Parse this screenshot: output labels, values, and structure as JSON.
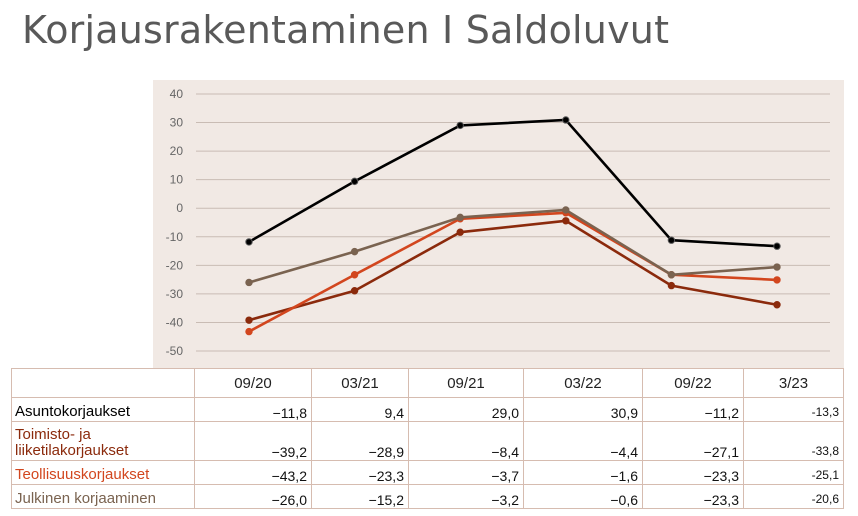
{
  "title": "Korjausrakentaminen I Saldoluvut",
  "chart_data": {
    "type": "line",
    "categories": [
      "09/20",
      "03/21",
      "09/21",
      "03/22",
      "09/22",
      "3/23"
    ],
    "ylim": [
      -50,
      40
    ],
    "yticks": [
      40,
      30,
      20,
      10,
      0,
      -10,
      -20,
      -30,
      -40,
      -50
    ],
    "ytick_labels": [
      "40",
      "30",
      "20",
      "10",
      "0",
      "-10",
      "-20",
      "-30",
      "-40",
      "-50"
    ],
    "grid": true,
    "legend": "data table below chart",
    "series": [
      {
        "name": "Asuntokorjaukset",
        "color": "#000000",
        "values": [
          -11.8,
          9.4,
          29.0,
          30.9,
          -11.2,
          -13.3
        ],
        "labels": [
          "−11,8",
          "9,4",
          "29,0",
          "30,9",
          "−11,2",
          "-13,3"
        ]
      },
      {
        "name": "Toimisto- ja liiketilakorjaukset",
        "color": "#8b2a0c",
        "values": [
          -39.2,
          -28.9,
          -8.4,
          -4.4,
          -27.1,
          -33.8
        ],
        "labels": [
          "−39,2",
          "−28,9",
          "−8,4",
          "−4,4",
          "−27,1",
          "-33,8"
        ]
      },
      {
        "name": "Teollisuuskorjaukset",
        "color": "#d2461e",
        "values": [
          -43.2,
          -23.3,
          -3.7,
          -1.6,
          -23.3,
          -25.1
        ],
        "labels": [
          "−43,2",
          "−23,3",
          "−3,7",
          "−1,6",
          "−23,3",
          "-25,1"
        ]
      },
      {
        "name": "Julkinen korjaaminen",
        "color": "#7a6350",
        "values": [
          -26.0,
          -15.2,
          -3.2,
          -0.6,
          -23.3,
          -20.6
        ],
        "labels": [
          "−26,0",
          "−15,2",
          "−3,2",
          "−0,6",
          "−23,3",
          "-20,6"
        ]
      }
    ]
  },
  "colors": {
    "plot_background": "#f1e9e4",
    "gridline": "#c9bcb4",
    "table_border": "#d6bcb0",
    "title": "#595959"
  }
}
